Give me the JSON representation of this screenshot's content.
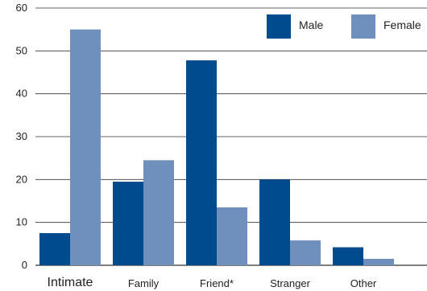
{
  "chart_data": {
    "type": "bar",
    "categories": [
      "Intimate",
      "Family",
      "Friend*",
      "Stranger",
      "Other"
    ],
    "series": [
      {
        "name": "Male",
        "values": [
          7.5,
          19.5,
          47.8,
          20,
          4.2
        ],
        "color": "#004b8d"
      },
      {
        "name": "Female",
        "values": [
          55,
          24.5,
          13.5,
          5.8,
          1.5
        ],
        "color": "#6f8fbd"
      }
    ],
    "ylim": [
      0,
      60
    ],
    "yticks": [
      0,
      10,
      20,
      30,
      40,
      50,
      60
    ],
    "grid": true,
    "legend_position": "top-right"
  }
}
